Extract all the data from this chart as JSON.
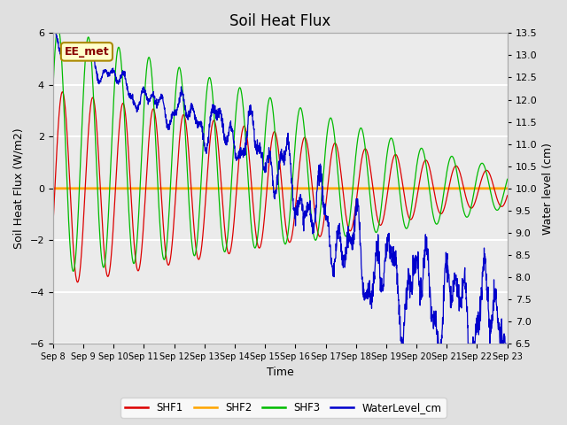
{
  "title": "Soil Heat Flux",
  "xlabel": "Time",
  "ylabel_left": "Soil Heat Flux (W/m2)",
  "ylabel_right": "Water level (cm)",
  "annotation": "EE_met",
  "ylim_left": [
    -6,
    6
  ],
  "ylim_right": [
    6.5,
    13.5
  ],
  "xtick_labels": [
    "Sep 8",
    "Sep 9",
    "Sep 10",
    "Sep 11",
    "Sep 12",
    "Sep 13",
    "Sep 14",
    "Sep 15",
    "Sep 16",
    "Sep 17",
    "Sep 18",
    "Sep 19",
    "Sep 20",
    "Sep 21",
    "Sep 22",
    "Sep 23"
  ],
  "yticks_left": [
    -6,
    -4,
    -2,
    0,
    2,
    4,
    6
  ],
  "yticks_right": [
    6.5,
    7.0,
    7.5,
    8.0,
    8.5,
    9.0,
    9.5,
    10.0,
    10.5,
    11.0,
    11.5,
    12.0,
    12.5,
    13.0,
    13.5
  ],
  "colors": {
    "SHF1": "#dd0000",
    "SHF2": "#ffa500",
    "SHF3": "#00bb00",
    "WaterLevel": "#0000cc"
  },
  "bg_color": "#e0e0e0",
  "plot_bg_color": "#ebebeb",
  "grid_color": "#ffffff",
  "legend_labels": [
    "SHF1",
    "SHF2",
    "SHF3",
    "WaterLevel_cm"
  ],
  "title_fontsize": 12,
  "axis_label_fontsize": 9,
  "tick_fontsize": 8,
  "xtick_fontsize": 7
}
